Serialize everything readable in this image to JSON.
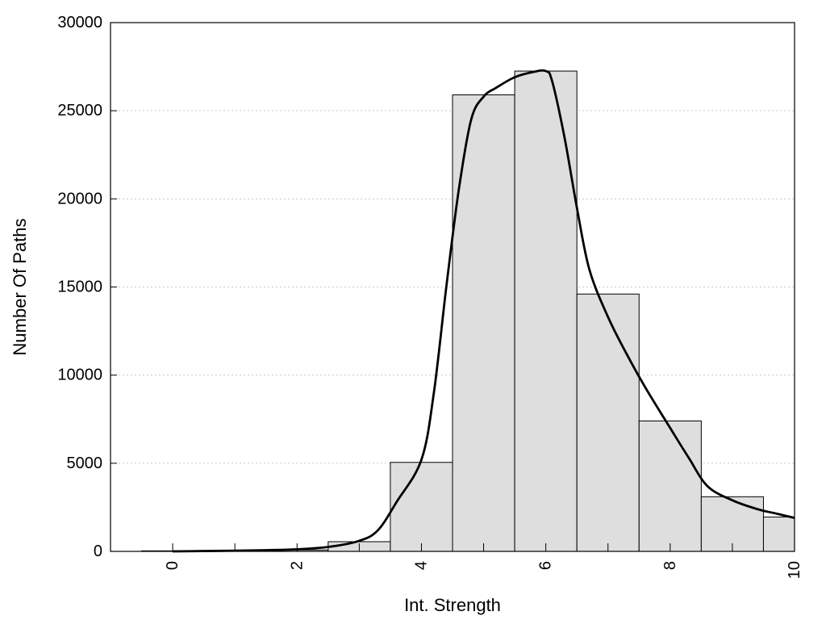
{
  "chart_data": {
    "type": "bar",
    "title": "",
    "xlabel": "Int. Strength",
    "ylabel": "Number Of Paths",
    "xlim": [
      -1,
      10
    ],
    "ylim": [
      0,
      30000
    ],
    "x_ticks": [
      0,
      2,
      4,
      6,
      8,
      10
    ],
    "y_ticks": [
      0,
      5000,
      10000,
      15000,
      20000,
      25000,
      30000
    ],
    "grid": "horizontal dotted",
    "bins": [
      0,
      1,
      2,
      3,
      4,
      5,
      6,
      7,
      8,
      9,
      10
    ],
    "values": [
      30,
      30,
      80,
      550,
      5050,
      25900,
      27250,
      14600,
      7400,
      3100,
      1950
    ],
    "curve": {
      "x": [
        0,
        0.5,
        1,
        1.5,
        2,
        2.5,
        3,
        3.3,
        3.6,
        4,
        4.2,
        4.4,
        4.6,
        4.8,
        5,
        5.2,
        5.5,
        5.8,
        6,
        6.1,
        6.3,
        6.5,
        6.7,
        7,
        7.3,
        7.6,
        8,
        8.3,
        8.6,
        9,
        9.4,
        9.7,
        10
      ],
      "y": [
        0,
        20,
        40,
        70,
        120,
        250,
        600,
        1200,
        2800,
        5200,
        9000,
        15000,
        20500,
        24500,
        25800,
        26300,
        26900,
        27200,
        27250,
        26700,
        23500,
        19500,
        16000,
        13300,
        11200,
        9300,
        7000,
        5300,
        3700,
        2900,
        2400,
        2150,
        1900
      ]
    },
    "colors": {
      "bar_fill": "#dedede",
      "bar_stroke": "#000000",
      "curve": "#000000",
      "grid": "#c8c8c8"
    }
  }
}
